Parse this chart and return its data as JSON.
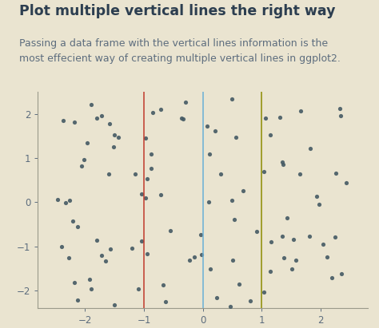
{
  "title": "Plot multiple vertical lines the right way",
  "subtitle": "Passing a data frame with the vertical lines information is the\nmost effecient way of creating multiple vertical lines in ggplot2.",
  "background_color": "#EAE4D0",
  "plot_bg_color": "#EAE4D0",
  "vlines": [
    -1,
    0,
    1
  ],
  "vline_colors": [
    "#C0392B",
    "#6aafd6",
    "#8B8B00"
  ],
  "scatter_seed": 42,
  "n_points": 100,
  "xlim": [
    -2.8,
    2.8
  ],
  "ylim": [
    -2.4,
    2.5
  ],
  "xticks": [
    -2,
    -1,
    0,
    1,
    2
  ],
  "yticks": [
    -2,
    -1,
    0,
    1,
    2
  ],
  "dot_color": "#455A64",
  "dot_size": 14,
  "dot_alpha": 0.9,
  "title_fontsize": 12.5,
  "subtitle_fontsize": 9,
  "title_color": "#2C3E50",
  "subtitle_color": "#5D6D7E",
  "tick_color": "#5D6D7E",
  "axis_color": "#9A9A8A",
  "title_fontweight": "bold"
}
